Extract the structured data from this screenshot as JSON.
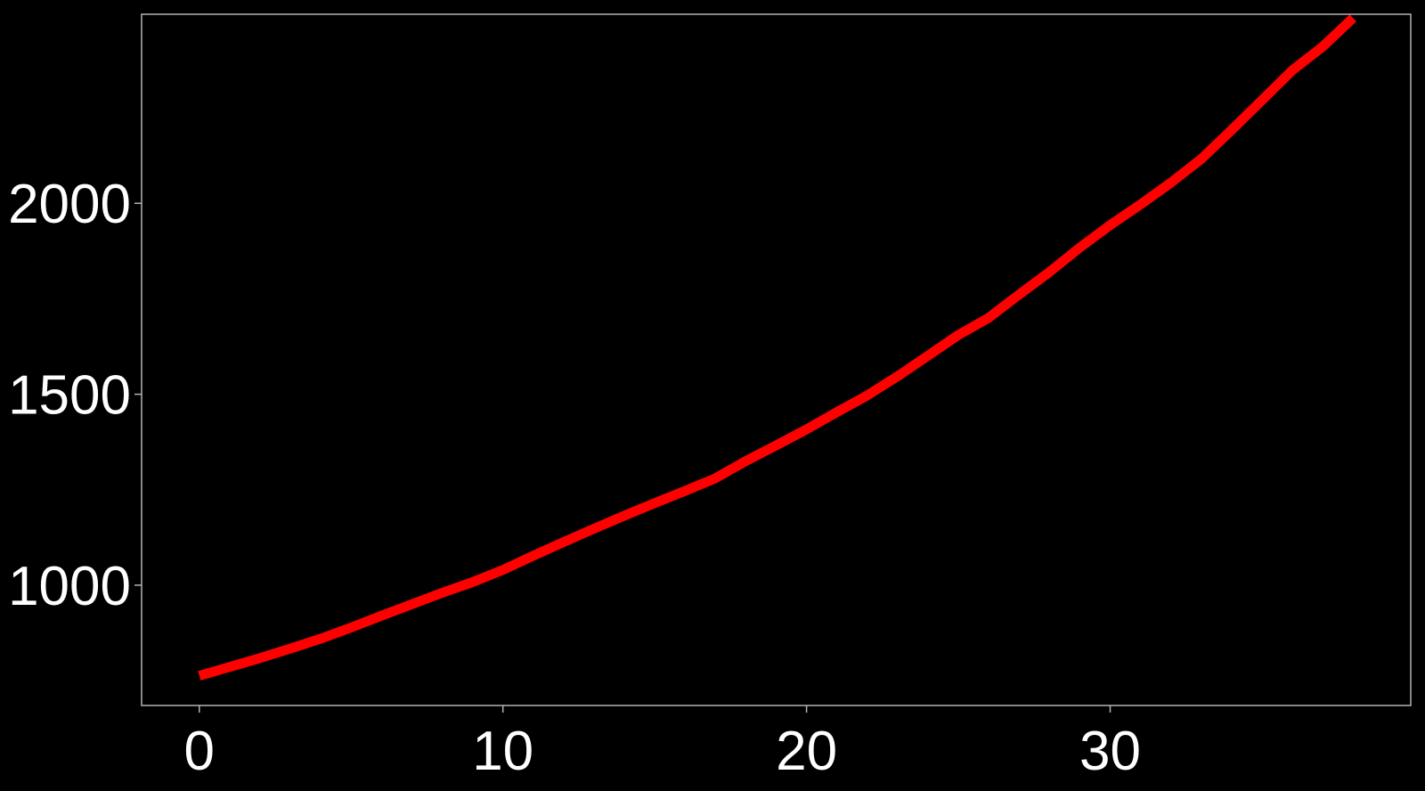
{
  "chart_data": {
    "type": "line",
    "title": "",
    "xlabel": "",
    "ylabel": "",
    "xlim": [
      -1.9,
      39.9
    ],
    "ylim": [
      685,
      2495
    ],
    "xticks": [
      0,
      10,
      20,
      30
    ],
    "yticks": [
      1000,
      1500,
      2000
    ],
    "grid": false,
    "legend": "none",
    "background_color": "#000000",
    "text_color": "#ffffff",
    "frame_color": "#b3b3b3",
    "series": [
      {
        "color": "#ff0000",
        "x": [
          0,
          1,
          2,
          3,
          4,
          5,
          6,
          7,
          8,
          9,
          10,
          11,
          12,
          13,
          14,
          15,
          16,
          17,
          18,
          19,
          20,
          21,
          22,
          23,
          24,
          25,
          26,
          27,
          28,
          29,
          30,
          31,
          32,
          33,
          34,
          35,
          36,
          37,
          38
        ],
        "y": [
          763,
          786,
          809,
          834,
          860,
          889,
          920,
          950,
          980,
          1008,
          1040,
          1077,
          1113,
          1148,
          1182,
          1215,
          1247,
          1280,
          1325,
          1366,
          1408,
          1453,
          1497,
          1547,
          1601,
          1655,
          1700,
          1761,
          1820,
          1884,
          1943,
          1997,
          2054,
          2116,
          2192,
          2270,
          2348,
          2410,
          2485
        ]
      }
    ]
  }
}
